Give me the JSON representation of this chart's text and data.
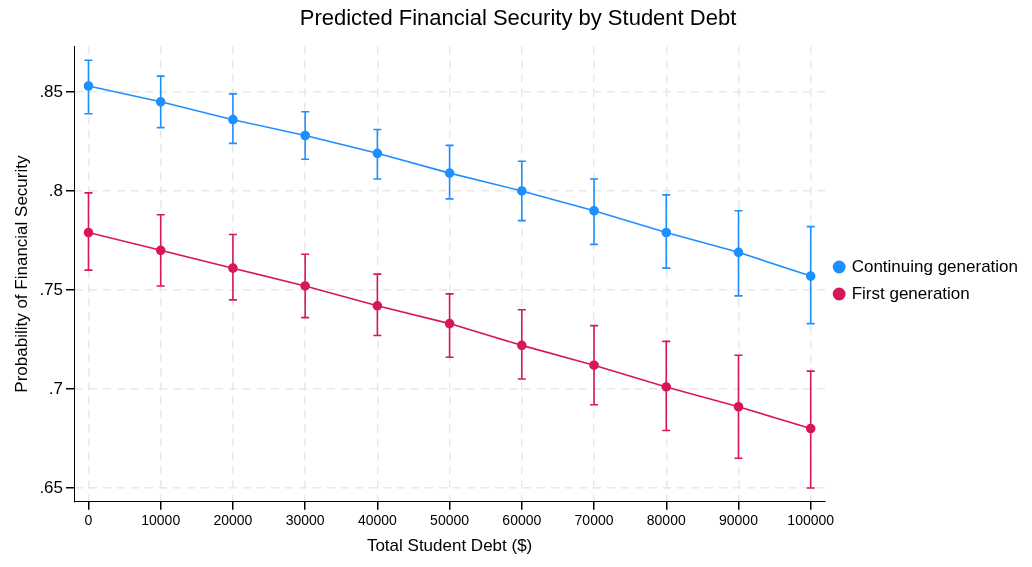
{
  "chart_data": {
    "type": "line",
    "title": "Predicted Financial Security by Student Debt",
    "xlabel": "Total Student Debt ($)",
    "ylabel": "Probability of Financial Security",
    "x": [
      0,
      10000,
      20000,
      30000,
      40000,
      50000,
      60000,
      70000,
      80000,
      90000,
      100000
    ],
    "series": [
      {
        "name": "Continuing generation",
        "color": "#1e8fff",
        "values": [
          0.853,
          0.845,
          0.836,
          0.828,
          0.819,
          0.809,
          0.8,
          0.79,
          0.779,
          0.769,
          0.757
        ],
        "errors": [
          [
            0.839,
            0.866
          ],
          [
            0.832,
            0.858
          ],
          [
            0.824,
            0.849
          ],
          [
            0.816,
            0.84
          ],
          [
            0.806,
            0.831
          ],
          [
            0.796,
            0.823
          ],
          [
            0.785,
            0.815
          ],
          [
            0.773,
            0.806
          ],
          [
            0.761,
            0.798
          ],
          [
            0.747,
            0.79
          ],
          [
            0.733,
            0.782
          ]
        ]
      },
      {
        "name": "First generation",
        "color": "#d6175b",
        "values": [
          0.779,
          0.77,
          0.761,
          0.752,
          0.742,
          0.733,
          0.722,
          0.712,
          0.701,
          0.691,
          0.68
        ],
        "errors": [
          [
            0.76,
            0.799
          ],
          [
            0.752,
            0.788
          ],
          [
            0.745,
            0.778
          ],
          [
            0.736,
            0.768
          ],
          [
            0.727,
            0.758
          ],
          [
            0.716,
            0.748
          ],
          [
            0.705,
            0.74
          ],
          [
            0.692,
            0.732
          ],
          [
            0.679,
            0.724
          ],
          [
            0.665,
            0.717
          ],
          [
            0.65,
            0.709
          ]
        ]
      }
    ],
    "xlim": [
      -2000,
      102000
    ],
    "xticks": [
      0,
      10000,
      20000,
      30000,
      40000,
      50000,
      60000,
      70000,
      80000,
      90000,
      100000
    ],
    "ylim": [
      0.643,
      0.873
    ],
    "yticks": [
      {
        "value": 0.65,
        "label": ".65"
      },
      {
        "value": 0.7,
        "label": ".7"
      },
      {
        "value": 0.75,
        "label": ".75"
      },
      {
        "value": 0.8,
        "label": ".8"
      },
      {
        "value": 0.85,
        "label": ".85"
      }
    ],
    "grid": true,
    "legend": "right",
    "marker": "circle",
    "line_style": "solid"
  }
}
